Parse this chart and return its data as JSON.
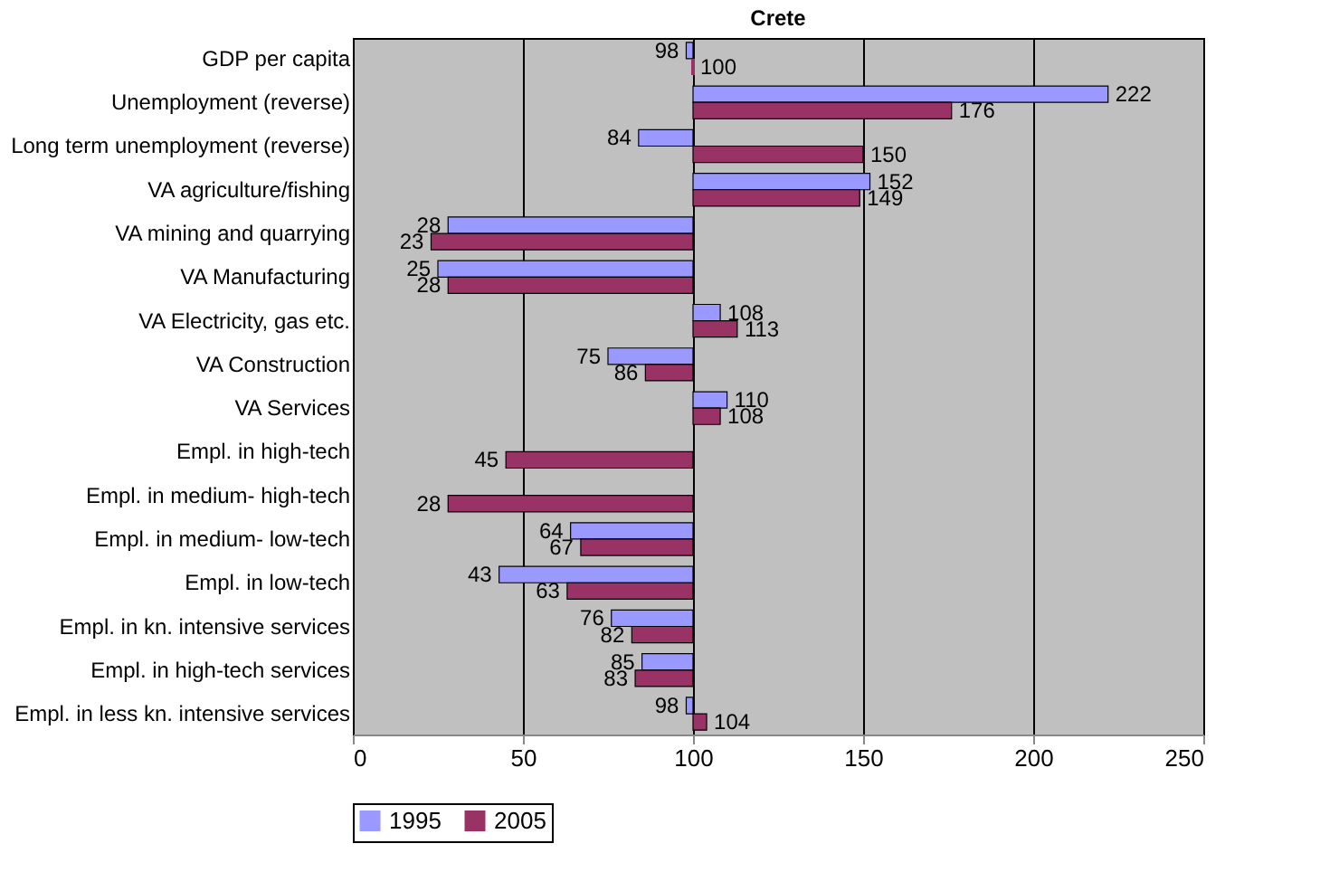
{
  "chart_data": {
    "type": "bar",
    "orientation": "horizontal",
    "title": "Crete",
    "categories": [
      "GDP per capita",
      "Unemployment (reverse)",
      "Long term unemployment (reverse)",
      "VA agriculture/fishing",
      "VA mining and quarrying",
      "VA Manufacturing",
      "VA Electricity, gas etc.",
      "VA Construction",
      "VA Services",
      "Empl. in high-tech",
      "Empl. in medium- high-tech",
      "Empl. in medium- low-tech",
      "Empl. in low-tech",
      "Empl. in kn. intensive services",
      "Empl. in high-tech services",
      "Empl. in less kn. intensive services"
    ],
    "series": [
      {
        "name": "1995",
        "color": "#9999ff",
        "base": [
          100,
          100,
          100,
          100,
          100,
          100,
          100,
          100,
          100,
          null,
          null,
          100,
          100,
          100,
          100,
          100
        ],
        "values": [
          -2,
          122,
          -16,
          52,
          -72,
          -75,
          8,
          -25,
          10,
          null,
          null,
          -36,
          -57,
          -24,
          -15,
          -2
        ],
        "value_labels": [
          "98",
          "222",
          "84",
          "152",
          "28",
          "25",
          "108",
          "75",
          "110",
          null,
          null,
          "64",
          "43",
          "76",
          "85",
          "98"
        ]
      },
      {
        "name": "2005",
        "color": "#993366",
        "base": [
          100,
          100,
          100,
          100,
          100,
          100,
          100,
          100,
          100,
          100,
          100,
          100,
          100,
          100,
          100,
          100
        ],
        "values": [
          0,
          76,
          50,
          49,
          -77,
          -72,
          13,
          -14,
          8,
          -55,
          -72,
          -33,
          -37,
          -18,
          -17,
          4
        ],
        "value_labels": [
          "100",
          "176",
          "150",
          "149",
          "23",
          "28",
          "113",
          "86",
          "108",
          "45",
          "28",
          "67",
          "63",
          "82",
          "83",
          "104"
        ]
      }
    ],
    "xlim": [
      0,
      250
    ],
    "xticks": [
      0,
      50,
      100,
      150,
      200,
      250
    ],
    "grid": "x",
    "legend": "bottom"
  }
}
